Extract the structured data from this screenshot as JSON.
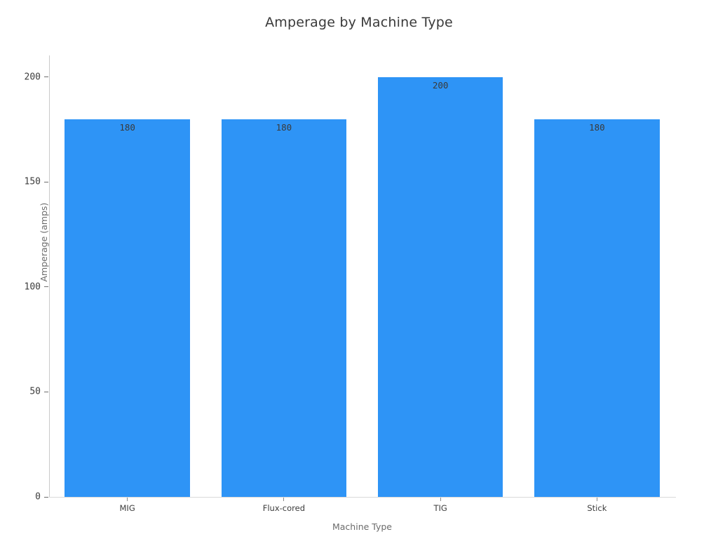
{
  "chart_data": {
    "type": "bar",
    "title": "Amperage by Machine Type",
    "xlabel": "Machine Type",
    "ylabel": "Amperage (amps)",
    "categories": [
      "MIG",
      "Flux-cored",
      "TIG",
      "Stick"
    ],
    "values": [
      180,
      180,
      200,
      180
    ],
    "bar_labels": [
      "180",
      "180",
      "200",
      "180"
    ],
    "yticks": [
      0,
      50,
      100,
      150,
      200
    ],
    "ylim": [
      0,
      210
    ],
    "grid": false,
    "legend": false,
    "bar_color": "#2e94f6",
    "bar_label_color": "#3a3a3a",
    "tick_label_color": "#3d3d3d",
    "axis_label_color": "#6b6b6b",
    "title_color": "#3a3a3a",
    "spine_color": "#c9c9c9"
  }
}
